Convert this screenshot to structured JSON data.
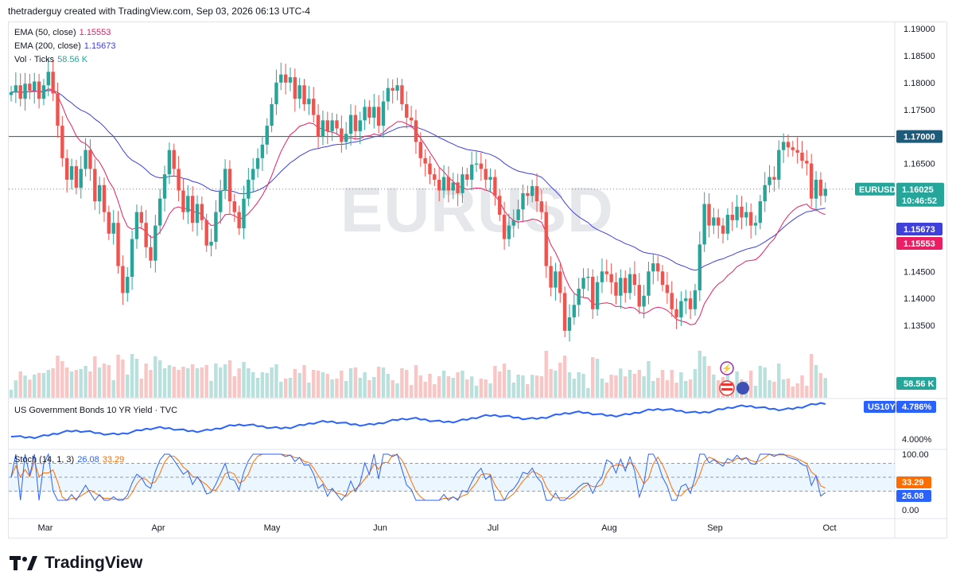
{
  "header": {
    "caption": "thetraderguy created with TradingView.com, Sep 03, 2026 06:13 UTC-4"
  },
  "watermark": "EURUSD",
  "legend": {
    "ema50": {
      "label": "EMA (50, close)",
      "value": "1.15553",
      "color": "#e91e63"
    },
    "ema200": {
      "label": "EMA (200, close)",
      "value": "1.15673",
      "color": "#3f3fdc"
    },
    "vol": {
      "label": "Vol · Ticks",
      "value": "58.56 K",
      "color": "#26a69a"
    },
    "bond": {
      "label": "US Government Bonds 10 YR Yield · TVC"
    },
    "stoch": {
      "label": "Stoch (14, 1, 3)",
      "k": "26.08",
      "d": "33.29",
      "k_color": "#2962ff",
      "d_color": "#ff6d00"
    }
  },
  "price_axis": {
    "ticks": [
      "1.19000",
      "1.18500",
      "1.18000",
      "1.17500",
      "1.16500",
      "1.14500",
      "1.14000",
      "1.13500"
    ],
    "tags": {
      "level": "1.17000",
      "symbol": "EURUSD",
      "last": "1.16025",
      "countdown": "10:46:52",
      "ema200": "1.15673",
      "ema50": "1.15553",
      "volume": "58.56 K"
    }
  },
  "bond_axis": {
    "symbol": "US10Y",
    "value": "4.786%",
    "tick": "4.000%"
  },
  "stoch_axis": {
    "ticks": [
      "100.00",
      "0.00"
    ],
    "d_value": "33.29",
    "k_value": "26.08"
  },
  "time_axis": [
    "Mar",
    "Apr",
    "May",
    "Jun",
    "Jul",
    "Aug",
    "Sep",
    "Oct"
  ],
  "brand": "TradingView",
  "colors": {
    "up": "#26a69a",
    "down": "#ef5350",
    "level_line": "#1e5a7a",
    "bond_line": "#2962ff"
  },
  "chart_data": {
    "type": "candlestick",
    "symbol": "EURUSD",
    "interval": "daily",
    "y_range": [
      1.13,
      1.19
    ],
    "horizontal_level": 1.17,
    "last_price": 1.16025,
    "ema50_last": 1.15553,
    "ema200_last": 1.15673,
    "time_labels": [
      "Mar",
      "Apr",
      "May",
      "Jun",
      "Jul",
      "Aug",
      "Sep",
      "Oct"
    ],
    "close": [
      1.1782,
      1.1795,
      1.177,
      1.1798,
      1.1785,
      1.1802,
      1.177,
      1.1795,
      1.182,
      1.178,
      1.172,
      1.166,
      1.162,
      1.1645,
      1.1605,
      1.164,
      1.1675,
      1.164,
      1.158,
      1.161,
      1.156,
      1.152,
      1.154,
      1.146,
      1.141,
      1.144,
      1.151,
      1.156,
      1.154,
      1.1495,
      1.147,
      1.1535,
      1.1585,
      1.163,
      1.1675,
      1.164,
      1.16,
      1.156,
      1.159,
      1.154,
      1.1575,
      1.1545,
      1.1498,
      1.1505,
      1.156,
      1.16,
      1.164,
      1.158,
      1.156,
      1.153,
      1.1585,
      1.162,
      1.164,
      1.166,
      1.1685,
      1.172,
      1.176,
      1.18,
      1.1815,
      1.18,
      1.181,
      1.177,
      1.1795,
      1.176,
      1.177,
      1.174,
      1.17,
      1.173,
      1.171,
      1.173,
      1.1715,
      1.169,
      1.1705,
      1.174,
      1.171,
      1.173,
      1.1755,
      1.1735,
      1.1755,
      1.172,
      1.1765,
      1.179,
      1.1785,
      1.1795,
      1.176,
      1.1735,
      1.173,
      1.169,
      1.166,
      1.165,
      1.163,
      1.162,
      1.16,
      1.1625,
      1.16,
      1.1615,
      1.1595,
      1.163,
      1.162,
      1.1648,
      1.165,
      1.164,
      1.162,
      1.1625,
      1.159,
      1.1555,
      1.151,
      1.1535,
      1.1545,
      1.1565,
      1.1595,
      1.159,
      1.1608,
      1.158,
      1.156,
      1.146,
      1.142,
      1.145,
      1.141,
      1.134,
      1.1365,
      1.1388,
      1.1418,
      1.1438,
      1.144,
      1.138,
      1.143,
      1.145,
      1.1445,
      1.143,
      1.1405,
      1.1438,
      1.141,
      1.1445,
      1.1425,
      1.1385,
      1.1405,
      1.145,
      1.1465,
      1.145,
      1.1425,
      1.141,
      1.138,
      1.1365,
      1.1395,
      1.14,
      1.138,
      1.1415,
      1.15,
      1.1575,
      1.1535,
      1.155,
      1.1535,
      1.152,
      1.1555,
      1.1545,
      1.157,
      1.155,
      1.156,
      1.1535,
      1.154,
      1.158,
      1.161,
      1.1625,
      1.162,
      1.1675,
      1.169,
      1.168,
      1.1675,
      1.167,
      1.1655,
      1.165,
      1.1585,
      1.162,
      1.159,
      1.1603
    ]
  }
}
